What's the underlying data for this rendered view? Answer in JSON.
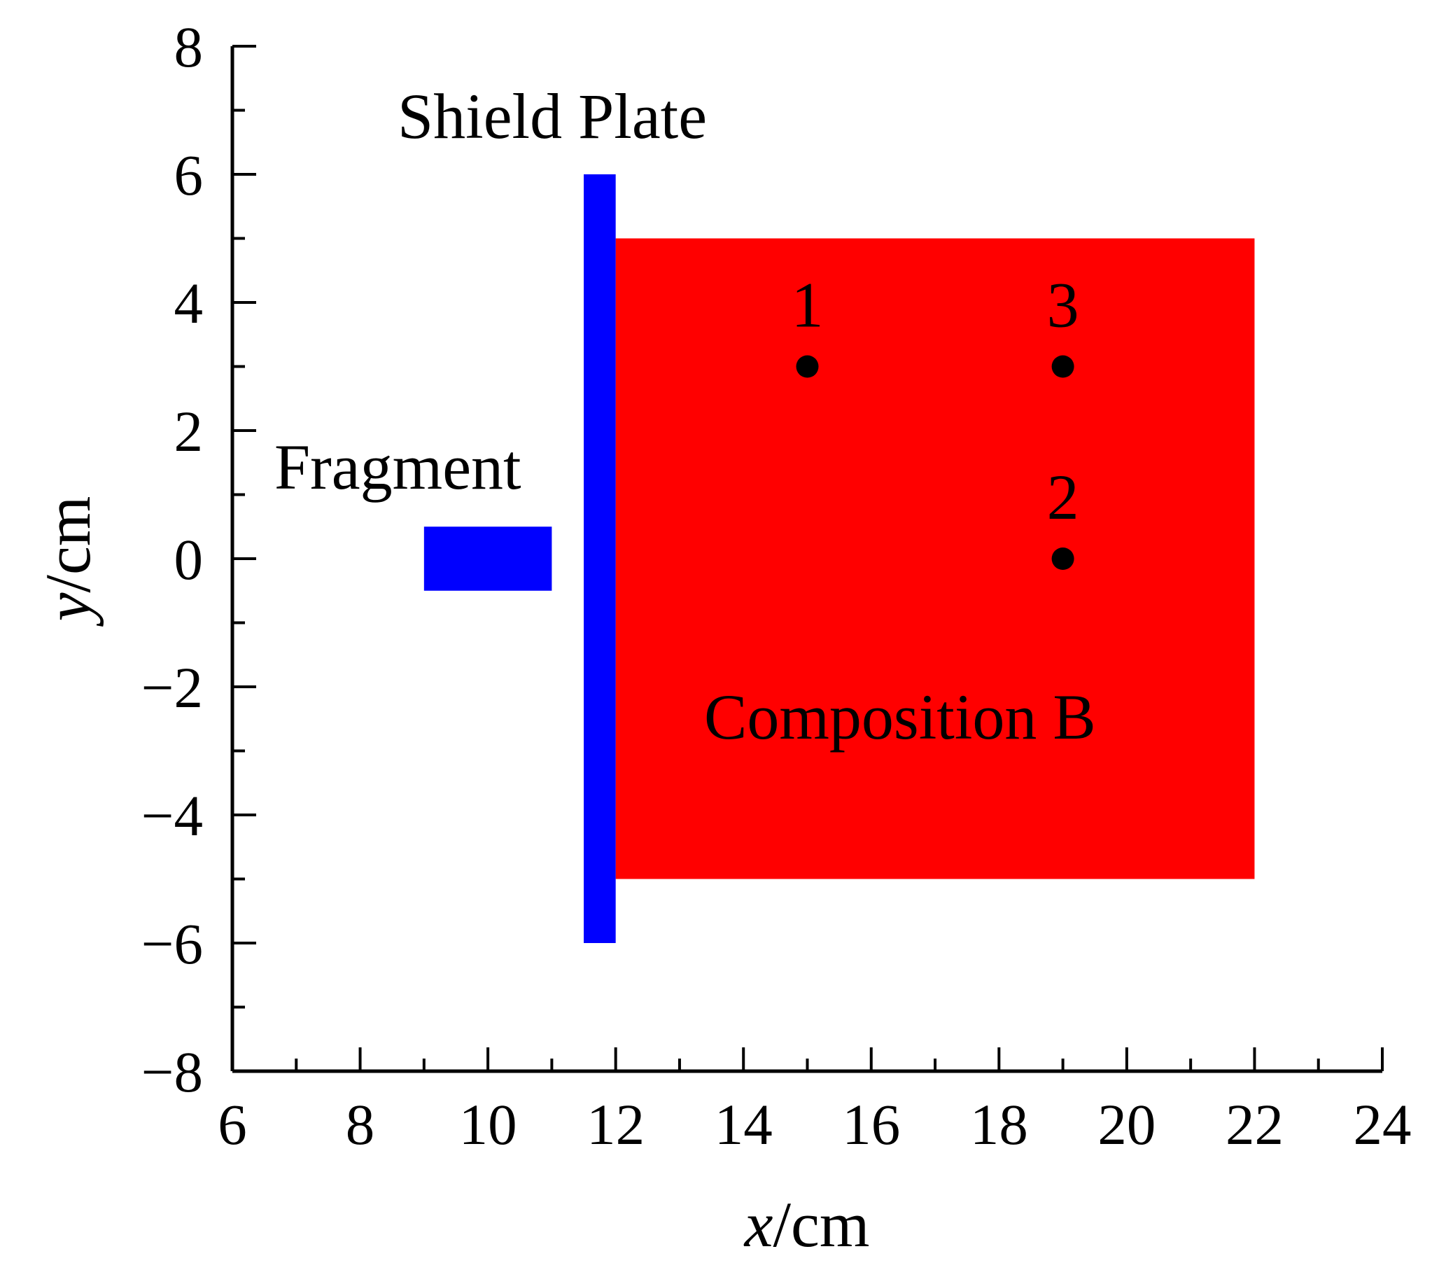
{
  "axes": {
    "xlabel": {
      "var": "x",
      "unit": "/cm"
    },
    "ylabel": {
      "var": "y",
      "unit": "/cm"
    },
    "xlim": [
      6,
      24
    ],
    "ylim": [
      -8,
      8
    ],
    "x_major_ticks": [
      6,
      8,
      10,
      12,
      14,
      16,
      18,
      20,
      22,
      24
    ],
    "x_minor_step": 1,
    "y_major_ticks": [
      -8,
      -6,
      -4,
      -2,
      0,
      2,
      4,
      6,
      8
    ],
    "y_minor_step": 1,
    "x_tick_labels": [
      "6",
      "8",
      "10",
      "12",
      "14",
      "16",
      "18",
      "20",
      "22",
      "24"
    ],
    "y_tick_labels": [
      "−8",
      "−6",
      "−4",
      "−2",
      "0",
      "2",
      "4",
      "6",
      "8"
    ]
  },
  "regions": [
    {
      "id": "composition-b",
      "label": "Composition B",
      "x0": 12,
      "x1": 22,
      "y0": -5,
      "y1": 5,
      "color": "#ff0000"
    },
    {
      "id": "shield-plate",
      "label": "Shield Plate",
      "x0": 11.5,
      "x1": 12,
      "y0": -6,
      "y1": 6,
      "color": "#0000ff"
    },
    {
      "id": "fragment",
      "label": "Fragment",
      "x0": 9,
      "x1": 11,
      "y0": -0.5,
      "y1": 0.5,
      "color": "#0000ff"
    }
  ],
  "points": [
    {
      "label": "1",
      "x": 15,
      "y": 3
    },
    {
      "label": "3",
      "x": 19,
      "y": 3
    },
    {
      "label": "2",
      "x": 19,
      "y": 0
    }
  ],
  "point_color": "#000000"
}
